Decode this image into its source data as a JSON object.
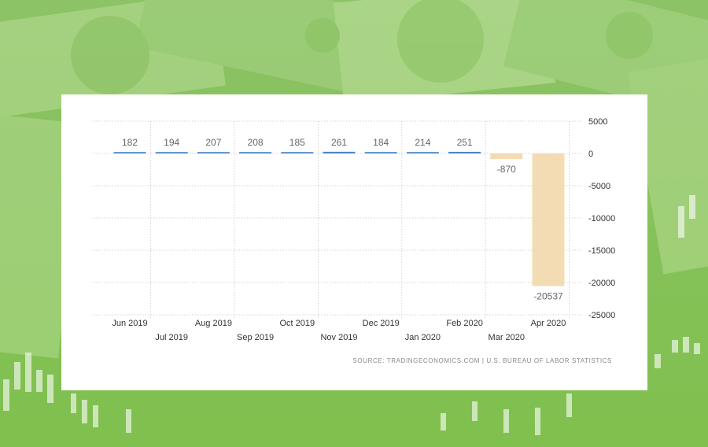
{
  "colors": {
    "positive_bar": "#4a86c8",
    "negative_bar": "#f3dcb4",
    "grid": "#c8c8c8",
    "label_text": "#666666",
    "tick_text": "#333333",
    "panel_bg": "#ffffff",
    "background_green": "#9fd07a"
  },
  "background": {
    "icon": "money-banknotes-background"
  },
  "chart_data": {
    "type": "bar",
    "title": "",
    "xlabel": "",
    "ylabel": "",
    "categories": [
      "Jun 2019",
      "Jul 2019",
      "Aug 2019",
      "Sep 2019",
      "Oct 2019",
      "Nov 2019",
      "Dec 2019",
      "Jan 2020",
      "Feb 2020",
      "Mar 2020",
      "Apr 2020"
    ],
    "series": [
      {
        "values": [
          182,
          194,
          207,
          208,
          185,
          261,
          184,
          214,
          251,
          -870,
          -20537
        ]
      }
    ],
    "data_labels": [
      "182",
      "194",
      "207",
      "208",
      "185",
      "261",
      "184",
      "214",
      "251",
      "-870",
      "-20537"
    ],
    "ylim": [
      -25000,
      5000
    ],
    "yticks": [
      5000,
      0,
      -5000,
      -10000,
      -15000,
      -20000,
      -25000
    ],
    "ytick_labels": [
      "5000",
      "0",
      "-5000",
      "-10000",
      "-15000",
      "-20000",
      "-25000"
    ],
    "y_axis_position": "right",
    "grid": true
  },
  "source_text": "SOURCE: TRADINGECONOMICS.COM | U.S. BUREAU OF LABOR STATISTICS"
}
